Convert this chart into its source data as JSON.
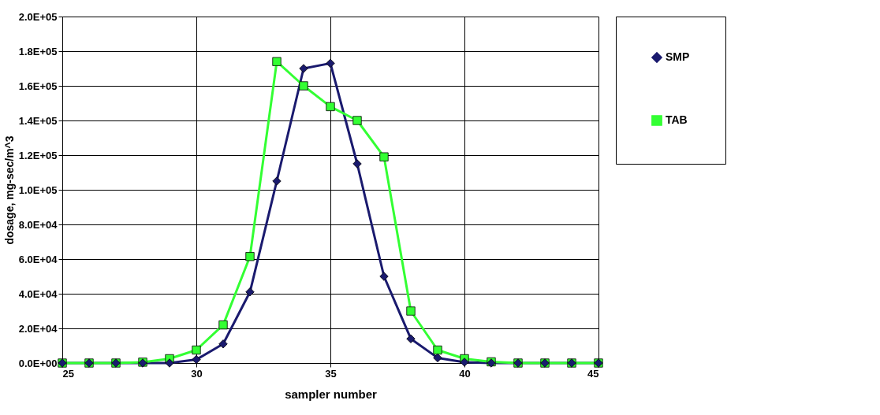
{
  "chart_data": {
    "type": "line",
    "xlabel": "sampler number",
    "ylabel": "dosage, mg-sec/m^3",
    "x": [
      25,
      26,
      27,
      28,
      29,
      30,
      31,
      32,
      33,
      34,
      35,
      36,
      37,
      38,
      39,
      40,
      41,
      42,
      43,
      44,
      45
    ],
    "series": [
      {
        "name": "SMP",
        "color": "#1a1a6e",
        "marker": "diamond",
        "values": [
          0,
          0,
          0,
          0,
          0,
          2000,
          11000,
          41000,
          105000,
          170000,
          173000,
          115000,
          50000,
          14000,
          3000,
          500,
          0,
          0,
          0,
          0,
          0
        ]
      },
      {
        "name": "TAB",
        "color": "#33ff33",
        "marker": "square",
        "values": [
          0,
          0,
          0,
          500,
          2500,
          7500,
          22000,
          61500,
          174000,
          160000,
          148000,
          140000,
          119000,
          30000,
          7500,
          2500,
          700,
          0,
          0,
          0,
          0
        ]
      }
    ],
    "xlim": [
      25,
      45
    ],
    "xticks": [
      25,
      30,
      35,
      40,
      45
    ],
    "ylim": [
      0,
      200000
    ],
    "yticks": [
      {
        "value": 0,
        "label": "0.0E+00"
      },
      {
        "value": 20000,
        "label": "2.0E+04"
      },
      {
        "value": 40000,
        "label": "4.0E+04"
      },
      {
        "value": 60000,
        "label": "6.0E+04"
      },
      {
        "value": 80000,
        "label": "8.0E+04"
      },
      {
        "value": 100000,
        "label": "1.0E+05"
      },
      {
        "value": 120000,
        "label": "1.2E+05"
      },
      {
        "value": 140000,
        "label": "1.4E+05"
      },
      {
        "value": 160000,
        "label": "1.6E+05"
      },
      {
        "value": 180000,
        "label": "1.8E+05"
      },
      {
        "value": 200000,
        "label": "2.0E+05"
      }
    ],
    "grid": true,
    "legend": "right",
    "line_style": "solid"
  }
}
